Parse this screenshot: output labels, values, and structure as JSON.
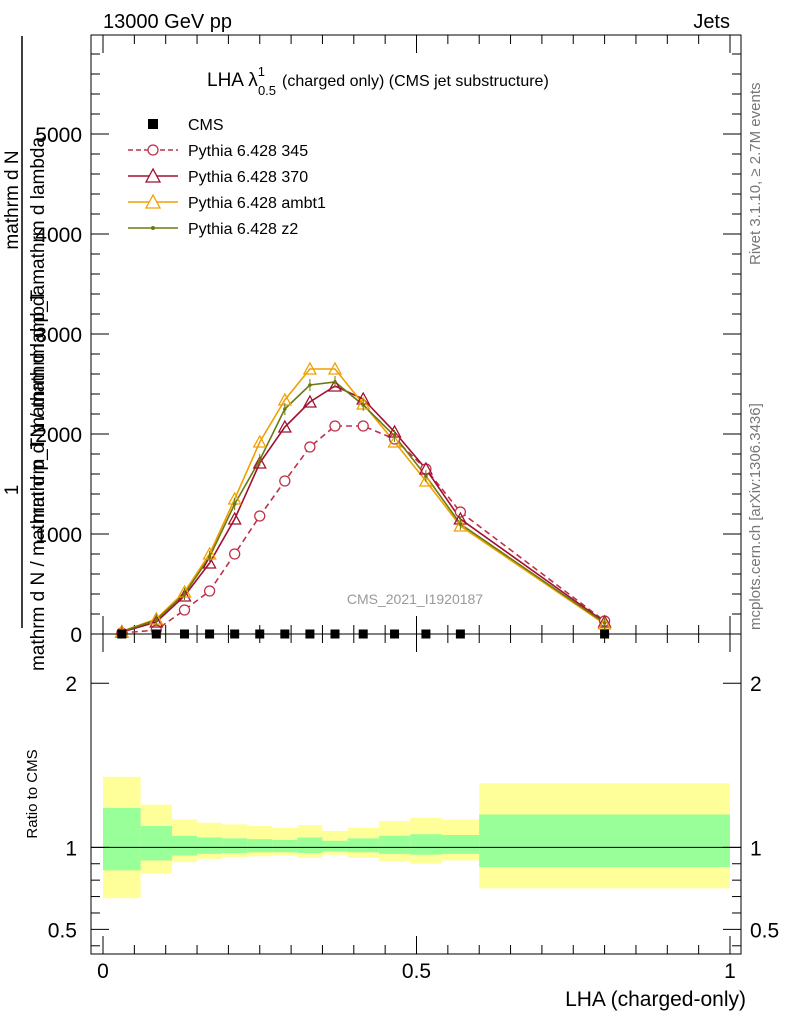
{
  "header": {
    "left": "13000 GeV pp",
    "right": "Jets"
  },
  "side_labels": {
    "rivet": "Rivet 3.1.10, ≥ 2.7M events",
    "mcplots": "mcplots.cern.ch [arXiv:1306.3436]"
  },
  "main_plot": {
    "title_main": "LHA λ",
    "title_sup": "1",
    "title_sub": "0.5",
    "title_rest": "(charged only) (CMS jet substructure)",
    "watermark": "CMS_2021_I1920187",
    "ylabel_top": "1",
    "ylabel_num": "mathrm d N",
    "ylabel_bot": "mathrm d N / mathrm d p_T mathrm d lambda"
  },
  "ratio_plot": {
    "ylabel": "Ratio to CMS",
    "xlabel": "LHA (charged-only)"
  },
  "chart_data": {
    "type": "line",
    "title": "LHA λ^1_0.5 (charged only) (CMS jet substructure)",
    "xlabel": "LHA (charged-only)",
    "ylabel": "1 / mathrm d N / mathrm d p_T mathrm d lambda · mathrm d^2 N / mathrm d p_T mathrm d lambda",
    "xlim": [
      0,
      1
    ],
    "ylim": [
      0,
      6000
    ],
    "yticks": [
      {
        "v": 0,
        "label": "0"
      },
      {
        "v": 1000,
        "label": "1000"
      },
      {
        "v": 2000,
        "label": "2000"
      },
      {
        "v": 3000,
        "label": "3000"
      },
      {
        "v": 4000,
        "label": "4000"
      },
      {
        "v": 5000,
        "label": "5000"
      }
    ],
    "xticks": [
      {
        "v": 0,
        "label": "0"
      },
      {
        "v": 0.5,
        "label": "0.5"
      },
      {
        "v": 1,
        "label": "1"
      }
    ],
    "legend_position": "top-left",
    "data": {
      "name": "CMS",
      "x": [
        0.03,
        0.085,
        0.13,
        0.17,
        0.21,
        0.25,
        0.29,
        0.33,
        0.37,
        0.415,
        0.465,
        0.515,
        0.57,
        0.8
      ],
      "y": [
        0,
        0,
        0,
        0,
        0,
        0,
        0,
        0,
        0,
        0,
        0,
        0,
        0,
        0
      ]
    },
    "series": [
      {
        "name": "Pythia 6.428 345",
        "color": "#c03048",
        "marker": "circle-open",
        "dashed": true,
        "x": [
          0.03,
          0.085,
          0.13,
          0.17,
          0.21,
          0.25,
          0.29,
          0.33,
          0.37,
          0.415,
          0.465,
          0.515,
          0.57,
          0.8
        ],
        "y": [
          10,
          40,
          240,
          430,
          800,
          1180,
          1530,
          1870,
          2080,
          2080,
          1950,
          1650,
          1220,
          130
        ]
      },
      {
        "name": "Pythia 6.428 370",
        "color": "#a01030",
        "marker": "triangle-open",
        "dashed": false,
        "x": [
          0.03,
          0.085,
          0.13,
          0.17,
          0.21,
          0.25,
          0.29,
          0.33,
          0.37,
          0.415,
          0.465,
          0.515,
          0.57,
          0.8
        ],
        "y": [
          20,
          120,
          380,
          710,
          1150,
          1710,
          2070,
          2320,
          2480,
          2350,
          2020,
          1650,
          1150,
          120
        ]
      },
      {
        "name": "Pythia 6.428 ambt1",
        "color": "#f0a000",
        "marker": "triangle-open",
        "dashed": false,
        "x": [
          0.03,
          0.085,
          0.13,
          0.17,
          0.21,
          0.25,
          0.29,
          0.33,
          0.37,
          0.415,
          0.465,
          0.515,
          0.57,
          0.8
        ],
        "y": [
          25,
          150,
          420,
          800,
          1350,
          1920,
          2340,
          2650,
          2650,
          2300,
          1920,
          1530,
          1080,
          100
        ]
      },
      {
        "name": "Pythia 6.428 z2",
        "color": "#6b7a10",
        "marker": "dot",
        "dashed": false,
        "x": [
          0.03,
          0.085,
          0.13,
          0.17,
          0.21,
          0.25,
          0.29,
          0.33,
          0.37,
          0.415,
          0.465,
          0.515,
          0.57,
          0.8
        ],
        "y": [
          25,
          140,
          400,
          770,
          1300,
          1740,
          2250,
          2490,
          2520,
          2290,
          1980,
          1580,
          1100,
          110
        ]
      }
    ],
    "ratio": {
      "ylabel": "Ratio to CMS",
      "ylim": [
        0.35,
        2.3
      ],
      "yticks": [
        {
          "v": 0.5,
          "label": "0.5"
        },
        {
          "v": 1,
          "label": "1"
        },
        {
          "v": 2,
          "label": "2"
        }
      ],
      "bins": [
        {
          "lo": 0.0,
          "hi": 0.06,
          "in": [
            0.86,
            1.24
          ],
          "out": [
            0.69,
            1.43
          ]
        },
        {
          "lo": 0.06,
          "hi": 0.11,
          "in": [
            0.92,
            1.13
          ],
          "out": [
            0.84,
            1.26
          ]
        },
        {
          "lo": 0.11,
          "hi": 0.15,
          "in": [
            0.95,
            1.07
          ],
          "out": [
            0.91,
            1.17
          ]
        },
        {
          "lo": 0.15,
          "hi": 0.19,
          "in": [
            0.96,
            1.06
          ],
          "out": [
            0.93,
            1.15
          ]
        },
        {
          "lo": 0.19,
          "hi": 0.23,
          "in": [
            0.965,
            1.055
          ],
          "out": [
            0.94,
            1.14
          ]
        },
        {
          "lo": 0.23,
          "hi": 0.27,
          "in": [
            0.97,
            1.05
          ],
          "out": [
            0.945,
            1.13
          ]
        },
        {
          "lo": 0.27,
          "hi": 0.31,
          "in": [
            0.97,
            1.045
          ],
          "out": [
            0.95,
            1.12
          ]
        },
        {
          "lo": 0.31,
          "hi": 0.35,
          "in": [
            0.965,
            1.06
          ],
          "out": [
            0.935,
            1.135
          ]
        },
        {
          "lo": 0.35,
          "hi": 0.39,
          "in": [
            0.975,
            1.04
          ],
          "out": [
            0.955,
            1.1
          ]
        },
        {
          "lo": 0.39,
          "hi": 0.44,
          "in": [
            0.97,
            1.055
          ],
          "out": [
            0.935,
            1.12
          ]
        },
        {
          "lo": 0.44,
          "hi": 0.49,
          "in": [
            0.96,
            1.07
          ],
          "out": [
            0.915,
            1.16
          ]
        },
        {
          "lo": 0.49,
          "hi": 0.54,
          "in": [
            0.955,
            1.08
          ],
          "out": [
            0.9,
            1.18
          ]
        },
        {
          "lo": 0.54,
          "hi": 0.6,
          "in": [
            0.96,
            1.075
          ],
          "out": [
            0.92,
            1.17
          ]
        },
        {
          "lo": 0.6,
          "hi": 1.0,
          "in": [
            0.88,
            1.2
          ],
          "out": [
            0.75,
            1.39
          ]
        }
      ]
    }
  }
}
